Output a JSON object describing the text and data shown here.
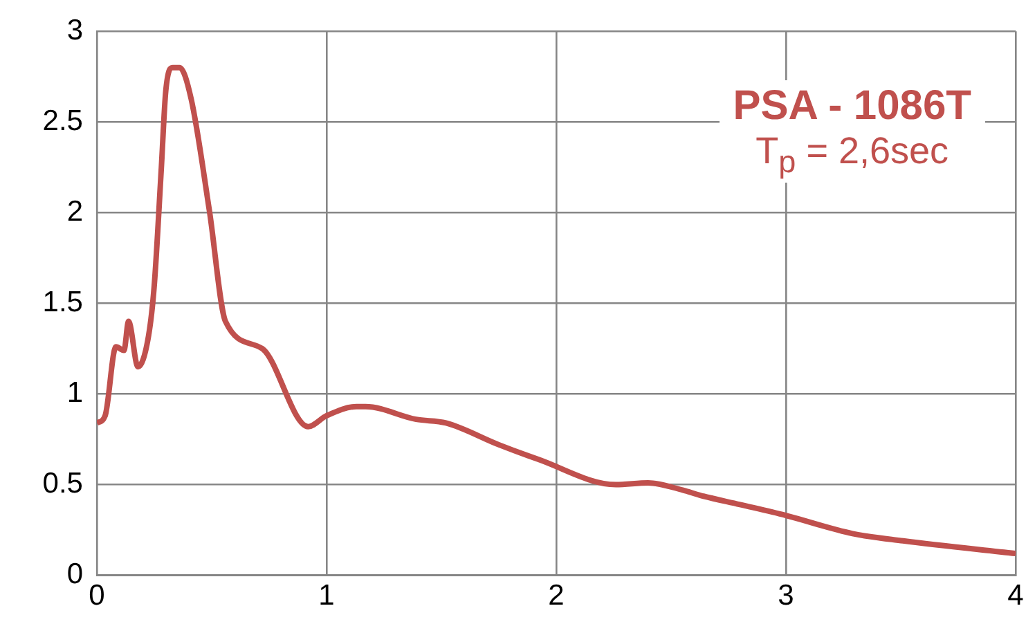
{
  "chart_data": {
    "type": "line",
    "title": "PSA - 1086T",
    "subtitle": "T$_{p}$ = 2,6sec",
    "x": [
      0,
      0.036,
      0.083,
      0.118,
      0.138,
      0.179,
      0.225,
      0.25,
      0.28,
      0.3,
      0.33,
      0.36,
      0.41,
      0.49,
      0.56,
      0.72,
      0.92,
      1.0,
      1.13,
      1.17,
      1.39,
      1.52,
      1.75,
      1.92,
      2.26,
      2.4,
      2.55,
      2.63,
      2.8,
      3.0,
      3.29,
      3.51,
      4.0
    ],
    "series": [
      {
        "color": "#c0504d",
        "values": [
          0.84,
          0.88,
          1.26,
          1.24,
          1.4,
          1.15,
          1.32,
          1.6,
          2.23,
          2.67,
          2.8,
          2.8,
          2.63,
          2.01,
          1.4,
          1.25,
          0.82,
          0.88,
          0.93,
          0.93,
          0.86,
          0.84,
          0.72,
          0.64,
          0.5,
          0.51,
          0.47,
          0.44,
          0.39,
          0.33,
          0.23,
          0.19,
          0.12
        ]
      }
    ],
    "xlim": [
      0,
      4
    ],
    "xticks": [
      0,
      1,
      2,
      3,
      4
    ],
    "ylim": [
      0,
      3
    ],
    "yticks": [
      0,
      0.5,
      1,
      1.5,
      2,
      2.5,
      3
    ],
    "grid": true,
    "legend": false,
    "marker": "none",
    "line_style": "solid"
  }
}
